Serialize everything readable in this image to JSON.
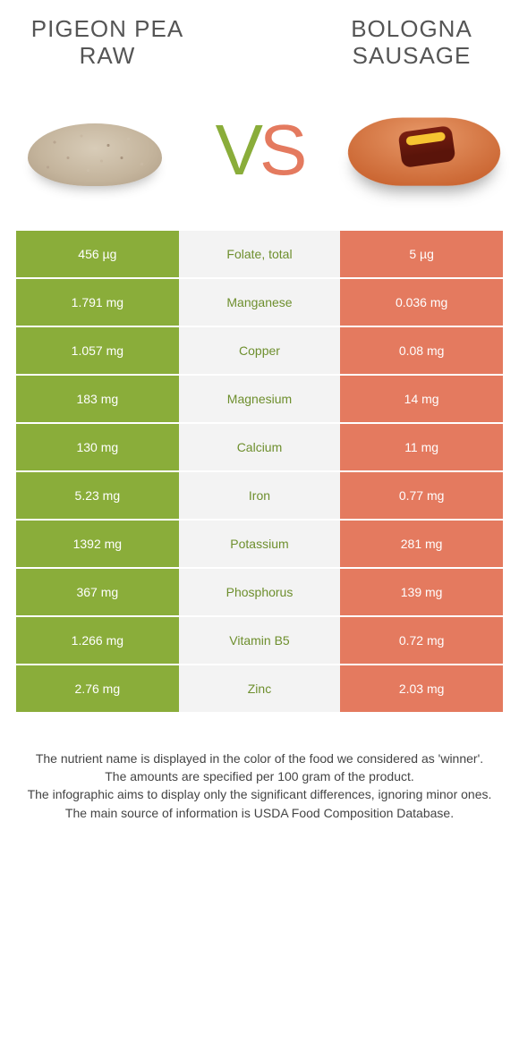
{
  "titles": {
    "left": "PIGEON PEA\nRAW",
    "right": "BOLOGNA\nSAUSAGE"
  },
  "vs": {
    "v": "V",
    "s": "S"
  },
  "colors": {
    "green_bg": "#8aad3a",
    "coral_bg": "#e47a5f",
    "green_txt": "#6e8f2e",
    "coral_txt": "#d4664c",
    "mid_bg": "#f3f3f3",
    "page_bg": "#ffffff"
  },
  "rows": [
    {
      "nutrient": "Folate, total",
      "left": "456 µg",
      "right": "5 µg",
      "winner": "left"
    },
    {
      "nutrient": "Manganese",
      "left": "1.791 mg",
      "right": "0.036 mg",
      "winner": "left"
    },
    {
      "nutrient": "Copper",
      "left": "1.057 mg",
      "right": "0.08 mg",
      "winner": "left"
    },
    {
      "nutrient": "Magnesium",
      "left": "183 mg",
      "right": "14 mg",
      "winner": "left"
    },
    {
      "nutrient": "Calcium",
      "left": "130 mg",
      "right": "11 mg",
      "winner": "left"
    },
    {
      "nutrient": "Iron",
      "left": "5.23 mg",
      "right": "0.77 mg",
      "winner": "left"
    },
    {
      "nutrient": "Potassium",
      "left": "1392 mg",
      "right": "281 mg",
      "winner": "left"
    },
    {
      "nutrient": "Phosphorus",
      "left": "367 mg",
      "right": "139 mg",
      "winner": "left"
    },
    {
      "nutrient": "Vitamin B5",
      "left": "1.266 mg",
      "right": "0.72 mg",
      "winner": "left"
    },
    {
      "nutrient": "Zinc",
      "left": "2.76 mg",
      "right": "2.03 mg",
      "winner": "left"
    }
  ],
  "footer": [
    "The nutrient name is displayed in the color of the food we considered as 'winner'.",
    "The amounts are specified per 100 gram of the product.",
    "The infographic aims to display only the significant differences, ignoring minor ones.",
    "The main source of information is USDA Food Composition Database."
  ]
}
